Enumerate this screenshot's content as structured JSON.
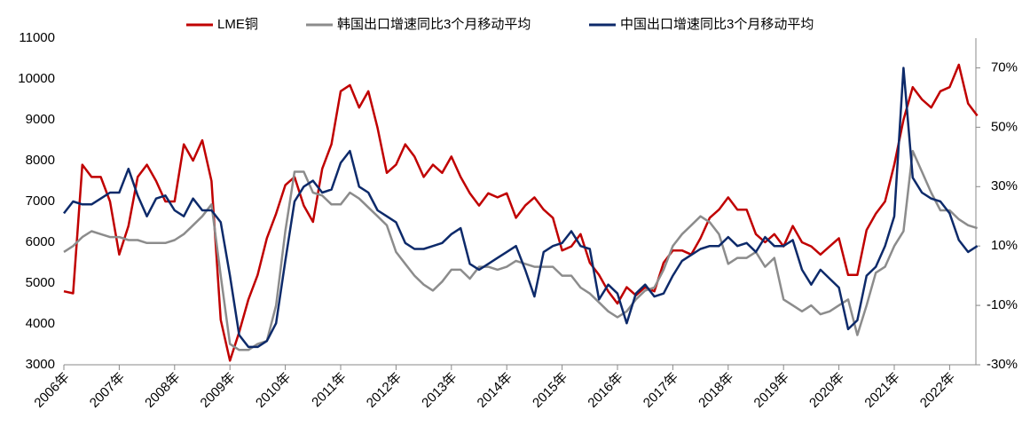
{
  "chart_data": {
    "type": "line",
    "categories": [
      "2006年",
      null,
      null,
      null,
      null,
      null,
      "2007年",
      null,
      null,
      null,
      null,
      null,
      "2008年",
      null,
      null,
      null,
      null,
      null,
      "2009年",
      null,
      null,
      null,
      null,
      null,
      "2010年",
      null,
      null,
      null,
      null,
      null,
      "2011年",
      null,
      null,
      null,
      null,
      null,
      "2012年",
      null,
      null,
      null,
      null,
      null,
      "2013年",
      null,
      null,
      null,
      null,
      null,
      "2014年",
      null,
      null,
      null,
      null,
      null,
      "2015年",
      null,
      null,
      null,
      null,
      null,
      "2016年",
      null,
      null,
      null,
      null,
      null,
      "2017年",
      null,
      null,
      null,
      null,
      null,
      "2018年",
      null,
      null,
      null,
      null,
      null,
      "2019年",
      null,
      null,
      null,
      null,
      null,
      "2020年",
      null,
      null,
      null,
      null,
      null,
      "2021年",
      null,
      null,
      null,
      null,
      null,
      "2022年",
      null,
      null,
      null
    ],
    "series": [
      {
        "name": "LME铜",
        "color": "#c00000",
        "values": [
          4800,
          4750,
          7900,
          7600,
          7600,
          7000,
          5700,
          6400,
          7600,
          7900,
          7500,
          7000,
          7000,
          8400,
          8000,
          8500,
          7500,
          4100,
          3100,
          3800,
          4600,
          5200,
          6100,
          6700,
          7400,
          7600,
          6900,
          6500,
          7800,
          8400,
          9700,
          9850,
          9300,
          9700,
          8800,
          7700,
          7900,
          8400,
          8100,
          7600,
          7900,
          7700,
          8100,
          7600,
          7200,
          6900,
          7200,
          7100,
          7200,
          6600,
          6900,
          7100,
          6800,
          6600,
          5800,
          5900,
          6200,
          5500,
          5200,
          4800,
          4500,
          4900,
          4700,
          4900,
          4800,
          5500,
          5800,
          5800,
          5700,
          6100,
          6600,
          6800,
          7100,
          6800,
          6800,
          6200,
          6000,
          6200,
          5900,
          6400,
          6000,
          5900,
          5700,
          5900,
          6100,
          5200,
          5200,
          6300,
          6700,
          7000,
          7900,
          9000,
          9800,
          9500,
          9300,
          9700,
          9800,
          10350,
          9400,
          9100
        ]
      },
      {
        "name": "韩国出口增速同比3个月移动平均",
        "color": "#8c8c8c",
        "axis": "y2",
        "values": [
          8,
          10,
          13,
          15,
          14,
          13,
          13,
          12,
          12,
          11,
          11,
          11,
          12,
          14,
          17,
          20,
          24,
          0,
          -23,
          -25,
          -25,
          -23,
          -22,
          -10,
          15,
          35,
          35,
          28,
          27,
          24,
          24,
          28,
          26,
          23,
          20,
          17,
          8,
          4,
          0,
          -3,
          -5,
          -2,
          2,
          2,
          -1,
          3,
          3,
          2,
          3,
          5,
          4,
          3,
          3,
          3,
          0,
          0,
          -4,
          -6,
          -9,
          -12,
          -14,
          -12,
          -8,
          -5,
          -4,
          2,
          10,
          14,
          17,
          20,
          18,
          14,
          4,
          6,
          6,
          8,
          3,
          6,
          -8,
          -10,
          -12,
          -10,
          -13,
          -12,
          -10,
          -8,
          -20,
          -10,
          1,
          3,
          10,
          15,
          42,
          35,
          28,
          22,
          22,
          19,
          17,
          16
        ]
      },
      {
        "name": "中国出口增速同比3个月移动平均",
        "color": "#0d2a6a",
        "axis": "y2",
        "values": [
          21,
          25,
          24,
          24,
          26,
          28,
          28,
          36,
          27,
          20,
          26,
          27,
          22,
          20,
          26,
          22,
          22,
          18,
          0,
          -20,
          -24,
          -24,
          -22,
          -16,
          5,
          25,
          30,
          32,
          28,
          29,
          38,
          42,
          30,
          28,
          22,
          20,
          18,
          11,
          9,
          9,
          10,
          11,
          14,
          16,
          4,
          2,
          4,
          6,
          8,
          10,
          2,
          -7,
          8,
          10,
          11,
          15,
          10,
          9,
          -8,
          -3,
          -6,
          -16,
          -6,
          -3,
          -7,
          -6,
          0,
          5,
          7,
          9,
          10,
          10,
          13,
          10,
          11,
          8,
          13,
          10,
          10,
          12,
          2,
          -3,
          2,
          -1,
          -4,
          -18,
          -15,
          0,
          3,
          10,
          20,
          70,
          33,
          28,
          26,
          25,
          21,
          12,
          8,
          10
        ]
      }
    ],
    "ylim": [
      3000,
      11000
    ],
    "yticks": [
      3000,
      4000,
      5000,
      6000,
      7000,
      8000,
      9000,
      10000,
      11000
    ],
    "y2lim": [
      -30,
      80
    ],
    "y2ticks": [
      {
        "value": -30,
        "label": "-30%"
      },
      {
        "value": -10,
        "label": "-10%"
      },
      {
        "value": 10,
        "label": "10%"
      },
      {
        "value": 30,
        "label": "30%"
      },
      {
        "value": 50,
        "label": "50%"
      },
      {
        "value": 70,
        "label": "70%"
      }
    ],
    "grid": false,
    "legend": "top"
  }
}
